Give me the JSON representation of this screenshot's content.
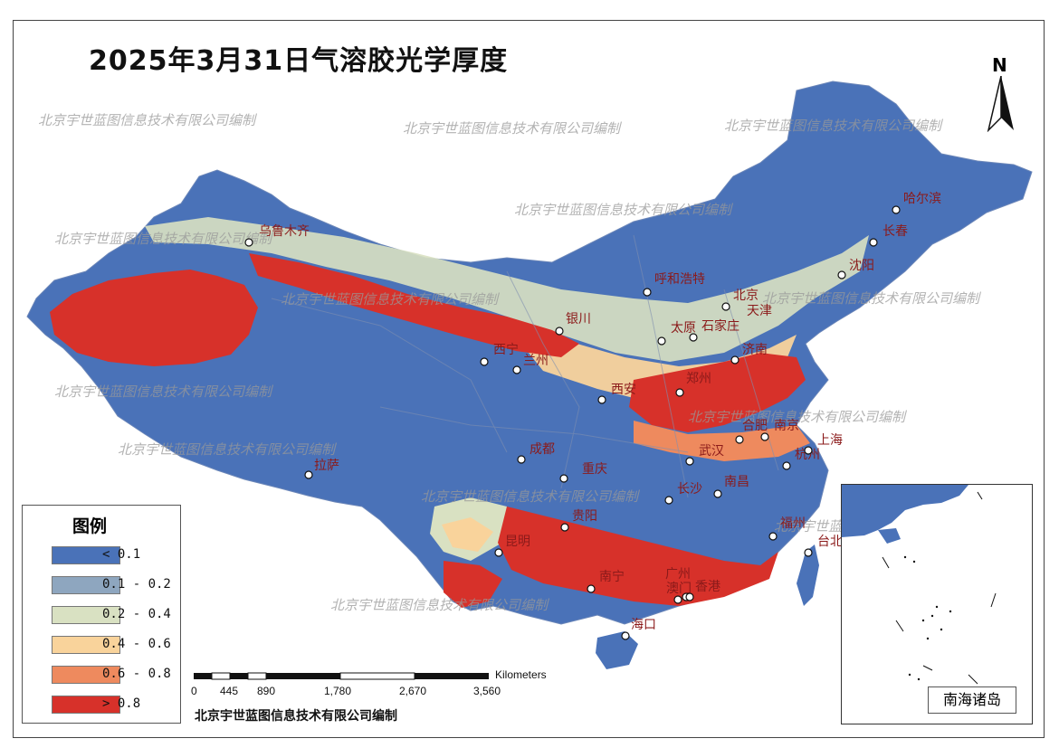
{
  "title": "2025年3月31日气溶胶光学厚度",
  "watermark": "北京宇世蓝图信息技术有限公司编制",
  "north_label": "N",
  "legend": {
    "title": "图例",
    "items": [
      {
        "label": "< 0.1",
        "color": "#4a72b8"
      },
      {
        "label": "0.1 - 0.2",
        "color": "#8ea6bf"
      },
      {
        "label": "0.2 - 0.4",
        "color": "#d9e1c2"
      },
      {
        "label": "0.4 - 0.6",
        "color": "#f9d39b"
      },
      {
        "label": "0.6 - 0.8",
        "color": "#ee8a5e"
      },
      {
        "label": "> 0.8",
        "color": "#d7312a"
      }
    ]
  },
  "scale_bar": {
    "unit": "Kilometers",
    "ticks": [
      "0",
      "445",
      "890",
      "1,780",
      "2,670",
      "3,560"
    ]
  },
  "credit": "北京宇世蓝图信息技术有限公司编制",
  "inset_label": "南海诸岛",
  "cities": [
    "乌鲁木齐",
    "哈尔滨",
    "长春",
    "沈阳",
    "呼和浩特",
    "北京",
    "天津",
    "银川",
    "太原",
    "石家庄",
    "济南",
    "西宁",
    "兰州",
    "郑州",
    "西安",
    "合肥",
    "南京",
    "上海",
    "武汉",
    "成都",
    "杭州",
    "拉萨",
    "重庆",
    "长沙",
    "南昌",
    "贵阳",
    "福州",
    "昆明",
    "台北",
    "广州",
    "南宁",
    "澳门",
    "香港",
    "海口"
  ]
}
